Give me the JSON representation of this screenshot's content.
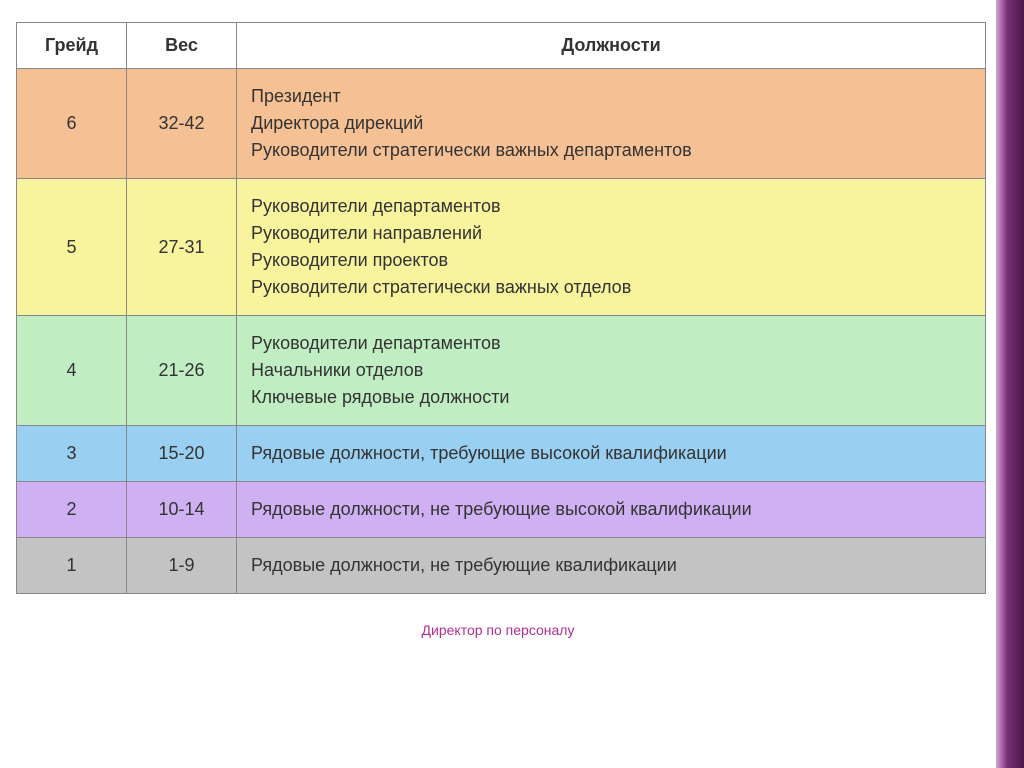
{
  "table": {
    "columns": [
      "Грейд",
      "Вес",
      "Должности"
    ],
    "rows": [
      {
        "grade": "6",
        "weight": "32-42",
        "positions": [
          "Президент",
          "Директора дирекций",
          "Руководители стратегически важных департаментов"
        ],
        "bg_color": "#f5c194"
      },
      {
        "grade": "5",
        "weight": "27-31",
        "positions": [
          "Руководители департаментов",
          "Руководители направлений",
          "Руководители проектов",
          "Руководители стратегически важных отделов"
        ],
        "bg_color": "#f8f39d"
      },
      {
        "grade": "4",
        "weight": "21-26",
        "positions": [
          "Руководители департаментов",
          "Начальники отделов",
          "Ключевые рядовые должности"
        ],
        "bg_color": "#c0eec2"
      },
      {
        "grade": "3",
        "weight": "15-20",
        "positions": [
          "Рядовые должности, требующие высокой квалификации"
        ],
        "bg_color": "#99cff0"
      },
      {
        "grade": "2",
        "weight": "10-14",
        "positions": [
          "Рядовые должности, не требующие высокой квалификации"
        ],
        "bg_color": "#cfb1f3"
      },
      {
        "grade": "1",
        "weight": "1-9",
        "positions": [
          "Рядовые должности, не требующие квалификации"
        ],
        "bg_color": "#c3c3c3"
      }
    ],
    "header_bg": "#ffffff",
    "border_color": "#888888",
    "text_color": "#333333",
    "font_size": 18
  },
  "footer": "Директор по персоналу",
  "footer_color": "#b03090",
  "decoration_gradient": [
    "#d4a5d8",
    "#7a3077",
    "#4a1548"
  ]
}
